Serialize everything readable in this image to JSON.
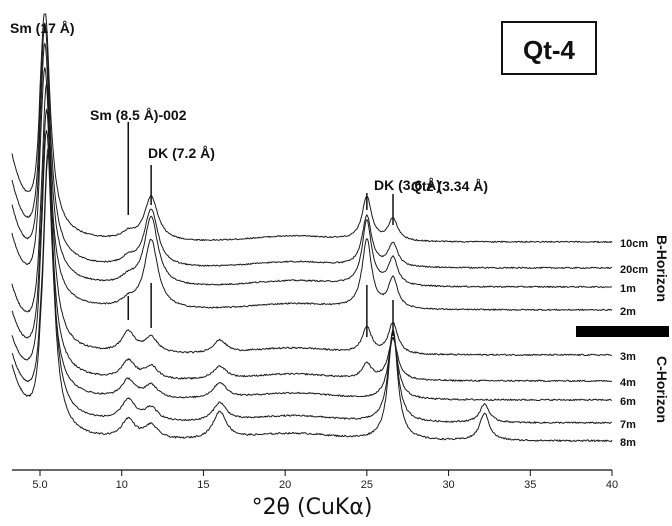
{
  "chart_data": {
    "type": "line",
    "title": "Qt-4",
    "xlabel": "°2θ (CuKα)",
    "ylabel": "",
    "xlim": [
      2.5,
      40
    ],
    "xticks": [
      5.0,
      10,
      15,
      20,
      25,
      30,
      35,
      40
    ],
    "xtick_labels": [
      "5.0",
      "10",
      "15",
      "20",
      "25",
      "30",
      "35",
      "40"
    ],
    "grid": false,
    "peak_labels": [
      {
        "text": "Sm (17 Å)",
        "x": 5.2
      },
      {
        "text": "Sm (8.5 Å)-002",
        "x": 10.4
      },
      {
        "text": "DK (7.2 Å)",
        "x": 11.8
      },
      {
        "text": "DK (3.6 Å)",
        "x": 25.0
      },
      {
        "text": "Qtz (3.34 Å)",
        "x": 26.6
      }
    ],
    "horizons": [
      {
        "name": "B-Horizon",
        "series": [
          "10cm",
          "20cm",
          "1m",
          "2m"
        ]
      },
      {
        "name": "C-Horizon",
        "series": [
          "3m",
          "4m",
          "6m",
          "7m",
          "8m"
        ]
      }
    ],
    "series": [
      {
        "name": "10cm",
        "peaks": [
          {
            "x": 5.3,
            "h": 1.0
          },
          {
            "x": 10.4,
            "h": 0.03
          },
          {
            "x": 11.8,
            "h": 0.2
          },
          {
            "x": 25.0,
            "h": 0.2
          },
          {
            "x": 26.6,
            "h": 0.1
          }
        ]
      },
      {
        "name": "20cm",
        "peaks": [
          {
            "x": 5.3,
            "h": 1.0
          },
          {
            "x": 10.4,
            "h": 0.03
          },
          {
            "x": 11.8,
            "h": 0.25
          },
          {
            "x": 25.0,
            "h": 0.22
          },
          {
            "x": 26.6,
            "h": 0.1
          }
        ]
      },
      {
        "name": "1m",
        "peaks": [
          {
            "x": 5.3,
            "h": 1.0
          },
          {
            "x": 10.4,
            "h": 0.03
          },
          {
            "x": 11.8,
            "h": 0.3
          },
          {
            "x": 25.0,
            "h": 0.28
          },
          {
            "x": 26.6,
            "h": 0.12
          }
        ]
      },
      {
        "name": "2m",
        "peaks": [
          {
            "x": 5.3,
            "h": 1.0
          },
          {
            "x": 10.4,
            "h": 0.03
          },
          {
            "x": 11.8,
            "h": 0.3
          },
          {
            "x": 25.0,
            "h": 0.3
          },
          {
            "x": 26.6,
            "h": 0.13
          }
        ]
      },
      {
        "name": "3m",
        "peaks": [
          {
            "x": 5.4,
            "h": 1.0
          },
          {
            "x": 10.4,
            "h": 0.08
          },
          {
            "x": 11.8,
            "h": 0.06
          },
          {
            "x": 16.0,
            "h": 0.05
          },
          {
            "x": 25.0,
            "h": 0.1
          },
          {
            "x": 26.6,
            "h": 0.12
          }
        ]
      },
      {
        "name": "4m",
        "peaks": [
          {
            "x": 5.4,
            "h": 1.0
          },
          {
            "x": 10.4,
            "h": 0.07
          },
          {
            "x": 11.8,
            "h": 0.05
          },
          {
            "x": 16.0,
            "h": 0.05
          },
          {
            "x": 25.0,
            "h": 0.06
          },
          {
            "x": 26.6,
            "h": 0.16
          }
        ]
      },
      {
        "name": "6m",
        "peaks": [
          {
            "x": 5.4,
            "h": 1.0
          },
          {
            "x": 10.4,
            "h": 0.07
          },
          {
            "x": 11.8,
            "h": 0.05
          },
          {
            "x": 16.0,
            "h": 0.06
          },
          {
            "x": 26.6,
            "h": 0.24
          }
        ]
      },
      {
        "name": "7m",
        "peaks": [
          {
            "x": 5.5,
            "h": 1.0
          },
          {
            "x": 10.4,
            "h": 0.08
          },
          {
            "x": 11.8,
            "h": 0.05
          },
          {
            "x": 16.0,
            "h": 0.07
          },
          {
            "x": 26.6,
            "h": 0.35
          },
          {
            "x": 32.2,
            "h": 0.07
          }
        ]
      },
      {
        "name": "8m",
        "peaks": [
          {
            "x": 5.5,
            "h": 1.0
          },
          {
            "x": 10.4,
            "h": 0.07
          },
          {
            "x": 11.8,
            "h": 0.05
          },
          {
            "x": 16.0,
            "h": 0.1
          },
          {
            "x": 26.6,
            "h": 0.4
          },
          {
            "x": 32.2,
            "h": 0.1
          }
        ]
      }
    ]
  }
}
